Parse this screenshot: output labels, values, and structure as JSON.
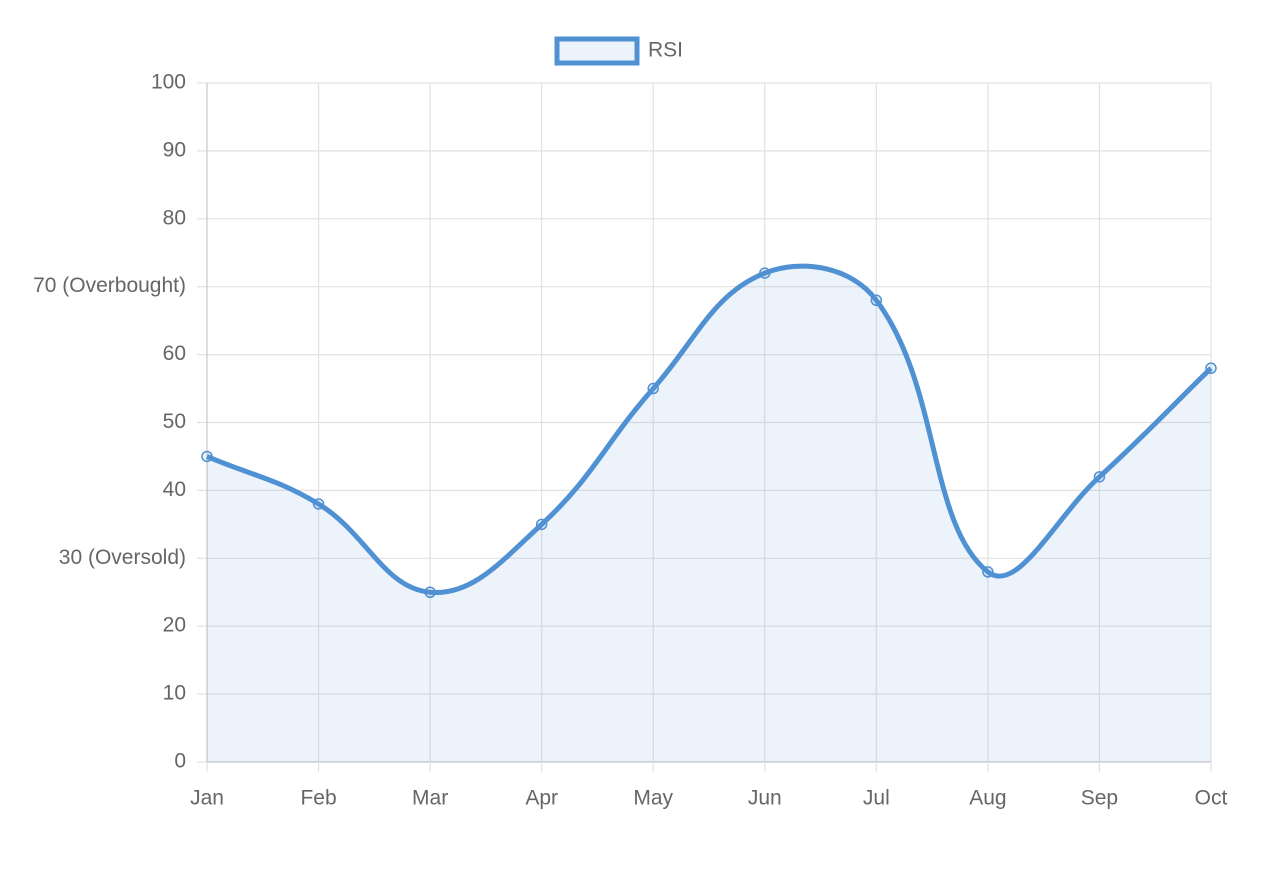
{
  "chart_data": {
    "type": "line",
    "categories": [
      "Jan",
      "Feb",
      "Mar",
      "Apr",
      "May",
      "Jun",
      "Jul",
      "Aug",
      "Sep",
      "Oct"
    ],
    "series": [
      {
        "name": "RSI",
        "color": "#4f91d3",
        "fill": "rgba(79,145,211,0.11)",
        "values": [
          45,
          38,
          25,
          35,
          55,
          72,
          68,
          28,
          42,
          58
        ]
      }
    ],
    "ylim": [
      0,
      100
    ],
    "yticks": [
      0,
      10,
      20,
      {
        "value": 30,
        "label": "30 (Oversold)"
      },
      40,
      50,
      60,
      {
        "value": 70,
        "label": "70 (Overbought)"
      },
      80,
      90,
      100
    ],
    "grid": true,
    "legend": "top"
  }
}
